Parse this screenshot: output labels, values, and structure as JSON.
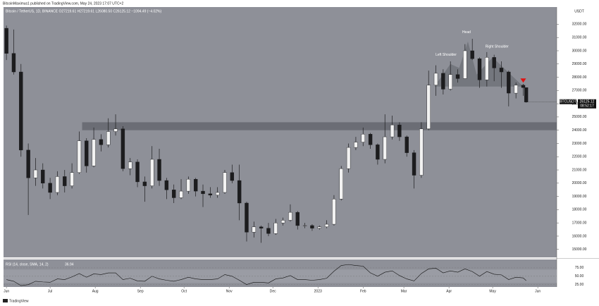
{
  "chart_data": {
    "type": "candlestick",
    "published": "BitcoinMaximus1 published on TradingView.com, May 24, 2023 17:07 UTC+2",
    "legend_text": "Bitcoin / TetherUS, 1D, BINANCE  O27219.61 H27219.61 L26080.50 C26125.12 −1094.49 (−4.02%)",
    "currency": "USDT",
    "symbol": "BTCUSDT",
    "countdown": "08:52:17",
    "footer": "TradingView",
    "up_color": "#f2f2f2",
    "down_color": "#1c1c1e",
    "wick_color": "#1c1c1e",
    "background": "#8e9098",
    "x": [
      "2022-06-01",
      "2022-06-06",
      "2022-06-11",
      "2022-06-16",
      "2022-06-21",
      "2022-06-26",
      "2022-07-01",
      "2022-07-06",
      "2022-07-11",
      "2022-07-16",
      "2022-07-21",
      "2022-07-26",
      "2022-07-31",
      "2022-08-05",
      "2022-08-10",
      "2022-08-15",
      "2022-08-20",
      "2022-08-25",
      "2022-08-30",
      "2022-09-04",
      "2022-09-09",
      "2022-09-14",
      "2022-09-19",
      "2022-09-24",
      "2022-09-29",
      "2022-10-04",
      "2022-10-09",
      "2022-10-14",
      "2022-10-19",
      "2022-10-24",
      "2022-10-29",
      "2022-11-03",
      "2022-11-08",
      "2022-11-13",
      "2022-11-18",
      "2022-11-23",
      "2022-11-28",
      "2022-12-03",
      "2022-12-08",
      "2022-12-13",
      "2022-12-18",
      "2022-12-23",
      "2022-12-28",
      "2023-01-02",
      "2023-01-07",
      "2023-01-12",
      "2023-01-17",
      "2023-01-22",
      "2023-01-27",
      "2023-02-01",
      "2023-02-06",
      "2023-02-11",
      "2023-02-16",
      "2023-02-21",
      "2023-02-26",
      "2023-03-03",
      "2023-03-08",
      "2023-03-13",
      "2023-03-18",
      "2023-03-23",
      "2023-03-28",
      "2023-04-02",
      "2023-04-07",
      "2023-04-12",
      "2023-04-17",
      "2023-04-22",
      "2023-04-27",
      "2023-05-02",
      "2023-05-07",
      "2023-05-12",
      "2023-05-17",
      "2023-05-22",
      "2023-05-24"
    ],
    "open": [
      31700,
      29800,
      28400,
      22500,
      20400,
      21000,
      20000,
      19300,
      20500,
      19800,
      20800,
      23200,
      21300,
      23300,
      22900,
      23900,
      24100,
      21100,
      21600,
      20100,
      19800,
      21800,
      20200,
      19500,
      18900,
      19400,
      20300,
      19400,
      19200,
      19100,
      19300,
      20800,
      20200,
      18500,
      16300,
      16700,
      16600,
      16200,
      17000,
      17200,
      17800,
      16800,
      16800,
      16600,
      16700,
      16900,
      18800,
      21100,
      22700,
      23100,
      23700,
      22900,
      21800,
      23500,
      24400,
      23500,
      22300,
      20600,
      24100,
      27400,
      28300,
      27100,
      28200,
      27900,
      30000,
      29400,
      27800,
      29500,
      28700,
      28400,
      26800,
      27400,
      27219.61
    ],
    "high": [
      31900,
      31600,
      29000,
      23000,
      21900,
      21500,
      20400,
      20900,
      21000,
      21500,
      23900,
      23400,
      24200,
      23700,
      24900,
      25200,
      24300,
      21900,
      21800,
      20500,
      22800,
      22600,
      20400,
      19900,
      20300,
      20500,
      20400,
      19900,
      19700,
      19700,
      21000,
      21400,
      21400,
      18600,
      17100,
      16800,
      17000,
      17300,
      17400,
      18400,
      17900,
      17000,
      16900,
      16800,
      17200,
      19100,
      21300,
      23000,
      23500,
      24200,
      23800,
      23000,
      25200,
      25100,
      24600,
      23600,
      22500,
      24600,
      28500,
      28900,
      28600,
      29200,
      28600,
      30500,
      30900,
      29500,
      29900,
      29700,
      29200,
      28500,
      27600,
      27500,
      27219.61
    ],
    "low": [
      29300,
      28200,
      22000,
      17600,
      19800,
      19600,
      18800,
      19100,
      19300,
      19600,
      20700,
      20800,
      21200,
      22400,
      22700,
      23600,
      20900,
      20600,
      19700,
      18600,
      19600,
      19800,
      18800,
      18500,
      18800,
      19200,
      19000,
      18200,
      18900,
      18900,
      19200,
      20000,
      17200,
      15600,
      15900,
      15500,
      16000,
      16100,
      16800,
      17100,
      16500,
      16600,
      16400,
      16500,
      16600,
      16800,
      18700,
      20800,
      22500,
      22800,
      22600,
      21400,
      21500,
      23300,
      23200,
      22000,
      19600,
      20400,
      24000,
      26600,
      26700,
      27000,
      27600,
      27900,
      29300,
      27200,
      27300,
      27700,
      27200,
      25800,
      26400,
      26600,
      26080.5
    ],
    "close": [
      29800,
      28400,
      22500,
      20400,
      21000,
      20000,
      19300,
      20500,
      19800,
      20800,
      23200,
      21300,
      23300,
      22900,
      23900,
      24100,
      21100,
      21600,
      20100,
      19800,
      21800,
      20200,
      19500,
      18900,
      19400,
      20300,
      19400,
      19200,
      19100,
      19300,
      20800,
      20200,
      18500,
      16300,
      16700,
      16600,
      16200,
      17000,
      17200,
      17800,
      16800,
      16800,
      16600,
      16700,
      16900,
      18800,
      21100,
      22700,
      23100,
      23700,
      22900,
      21800,
      23500,
      24400,
      23500,
      22300,
      20600,
      24100,
      27400,
      28300,
      27100,
      28200,
      27900,
      30000,
      29400,
      27800,
      29500,
      28700,
      28400,
      26800,
      27400,
      27219.61,
      26125.12
    ],
    "xlim": [
      "2022-05-30",
      "2023-06-14"
    ],
    "xticks": [
      {
        "value": "2022-06-01",
        "label": "Jun"
      },
      {
        "value": "2022-07-01",
        "label": "Jul"
      },
      {
        "value": "2022-08-01",
        "label": "Aug"
      },
      {
        "value": "2022-09-01",
        "label": "Sep"
      },
      {
        "value": "2022-10-01",
        "label": "Oct"
      },
      {
        "value": "2022-11-01",
        "label": "Nov"
      },
      {
        "value": "2022-12-01",
        "label": "Dec"
      },
      {
        "value": "2023-01-01",
        "label": "2023"
      },
      {
        "value": "2023-02-01",
        "label": "Feb"
      },
      {
        "value": "2023-03-01",
        "label": "Mar"
      },
      {
        "value": "2023-04-01",
        "label": "Apr"
      },
      {
        "value": "2023-05-01",
        "label": "May"
      },
      {
        "value": "2023-06-01",
        "label": "Jun"
      }
    ],
    "ylim": [
      14400,
      33300
    ],
    "yticks": [
      {
        "value": 15000,
        "label": "15000.00"
      },
      {
        "value": 16000,
        "label": "16000.00"
      },
      {
        "value": 17000,
        "label": "17000.00"
      },
      {
        "value": 18000,
        "label": "18000.00"
      },
      {
        "value": 19000,
        "label": "19000.00"
      },
      {
        "value": 20000,
        "label": "20000.00"
      },
      {
        "value": 21000,
        "label": "21000.00"
      },
      {
        "value": 22000,
        "label": "22000.00"
      },
      {
        "value": 23000,
        "label": "23000.00"
      },
      {
        "value": 24000,
        "label": "24000.00"
      },
      {
        "value": 25000,
        "label": "25000.00"
      },
      {
        "value": 26000,
        "label": "26000.00"
      },
      {
        "value": 27000,
        "label": "27000.00"
      },
      {
        "value": 28000,
        "label": "28000.00"
      },
      {
        "value": 29000,
        "label": "29000.00"
      },
      {
        "value": 30000,
        "label": "30000.00"
      },
      {
        "value": 31000,
        "label": "31000.00"
      },
      {
        "value": 32000,
        "label": "32000.00"
      }
    ],
    "zone": {
      "from": 24000,
      "to": 24600,
      "start": "2022-07-23"
    },
    "pattern": [
      [
        "2023-03-22",
        27300
      ],
      [
        "2023-04-02",
        29000
      ],
      [
        "2023-04-08",
        28700
      ],
      [
        "2023-04-14",
        30700
      ],
      [
        "2023-04-20",
        28200
      ],
      [
        "2023-05-01",
        29500
      ],
      [
        "2023-05-22",
        27300
      ]
    ],
    "annotations": [
      {
        "text": "Left Shoulder",
        "x": "2023-03-30",
        "y": 29700
      },
      {
        "text": "Head",
        "x": "2023-04-13",
        "y": 31400
      },
      {
        "text": "Right Shoulder",
        "x": "2023-05-04",
        "y": 30300
      }
    ],
    "marker": {
      "x": "2023-05-22",
      "y": 27750,
      "color": "#e01010"
    },
    "rsi": {
      "title": "RSI (14, close, SMA, 14, 2)",
      "color": "#111111",
      "values": [
        40,
        35,
        22,
        25,
        35,
        33,
        32,
        42,
        40,
        48,
        58,
        47,
        57,
        55,
        60,
        60,
        40,
        44,
        36,
        35,
        50,
        42,
        38,
        35,
        40,
        47,
        42,
        40,
        40,
        42,
        55,
        50,
        38,
        25,
        32,
        32,
        30,
        42,
        45,
        52,
        40,
        40,
        38,
        40,
        44,
        65,
        82,
        85,
        82,
        80,
        60,
        50,
        62,
        66,
        52,
        42,
        36,
        58,
        72,
        74,
        60,
        66,
        62,
        72,
        64,
        50,
        64,
        56,
        54,
        40,
        47,
        45,
        36.94
      ],
      "ylim": [
        18,
        100
      ],
      "band": [
        30,
        70
      ],
      "yticks": [
        {
          "value": 75,
          "label": "75.00"
        },
        {
          "value": 50,
          "label": "50.00"
        },
        {
          "value": 25,
          "label": "25.00"
        }
      ]
    }
  }
}
